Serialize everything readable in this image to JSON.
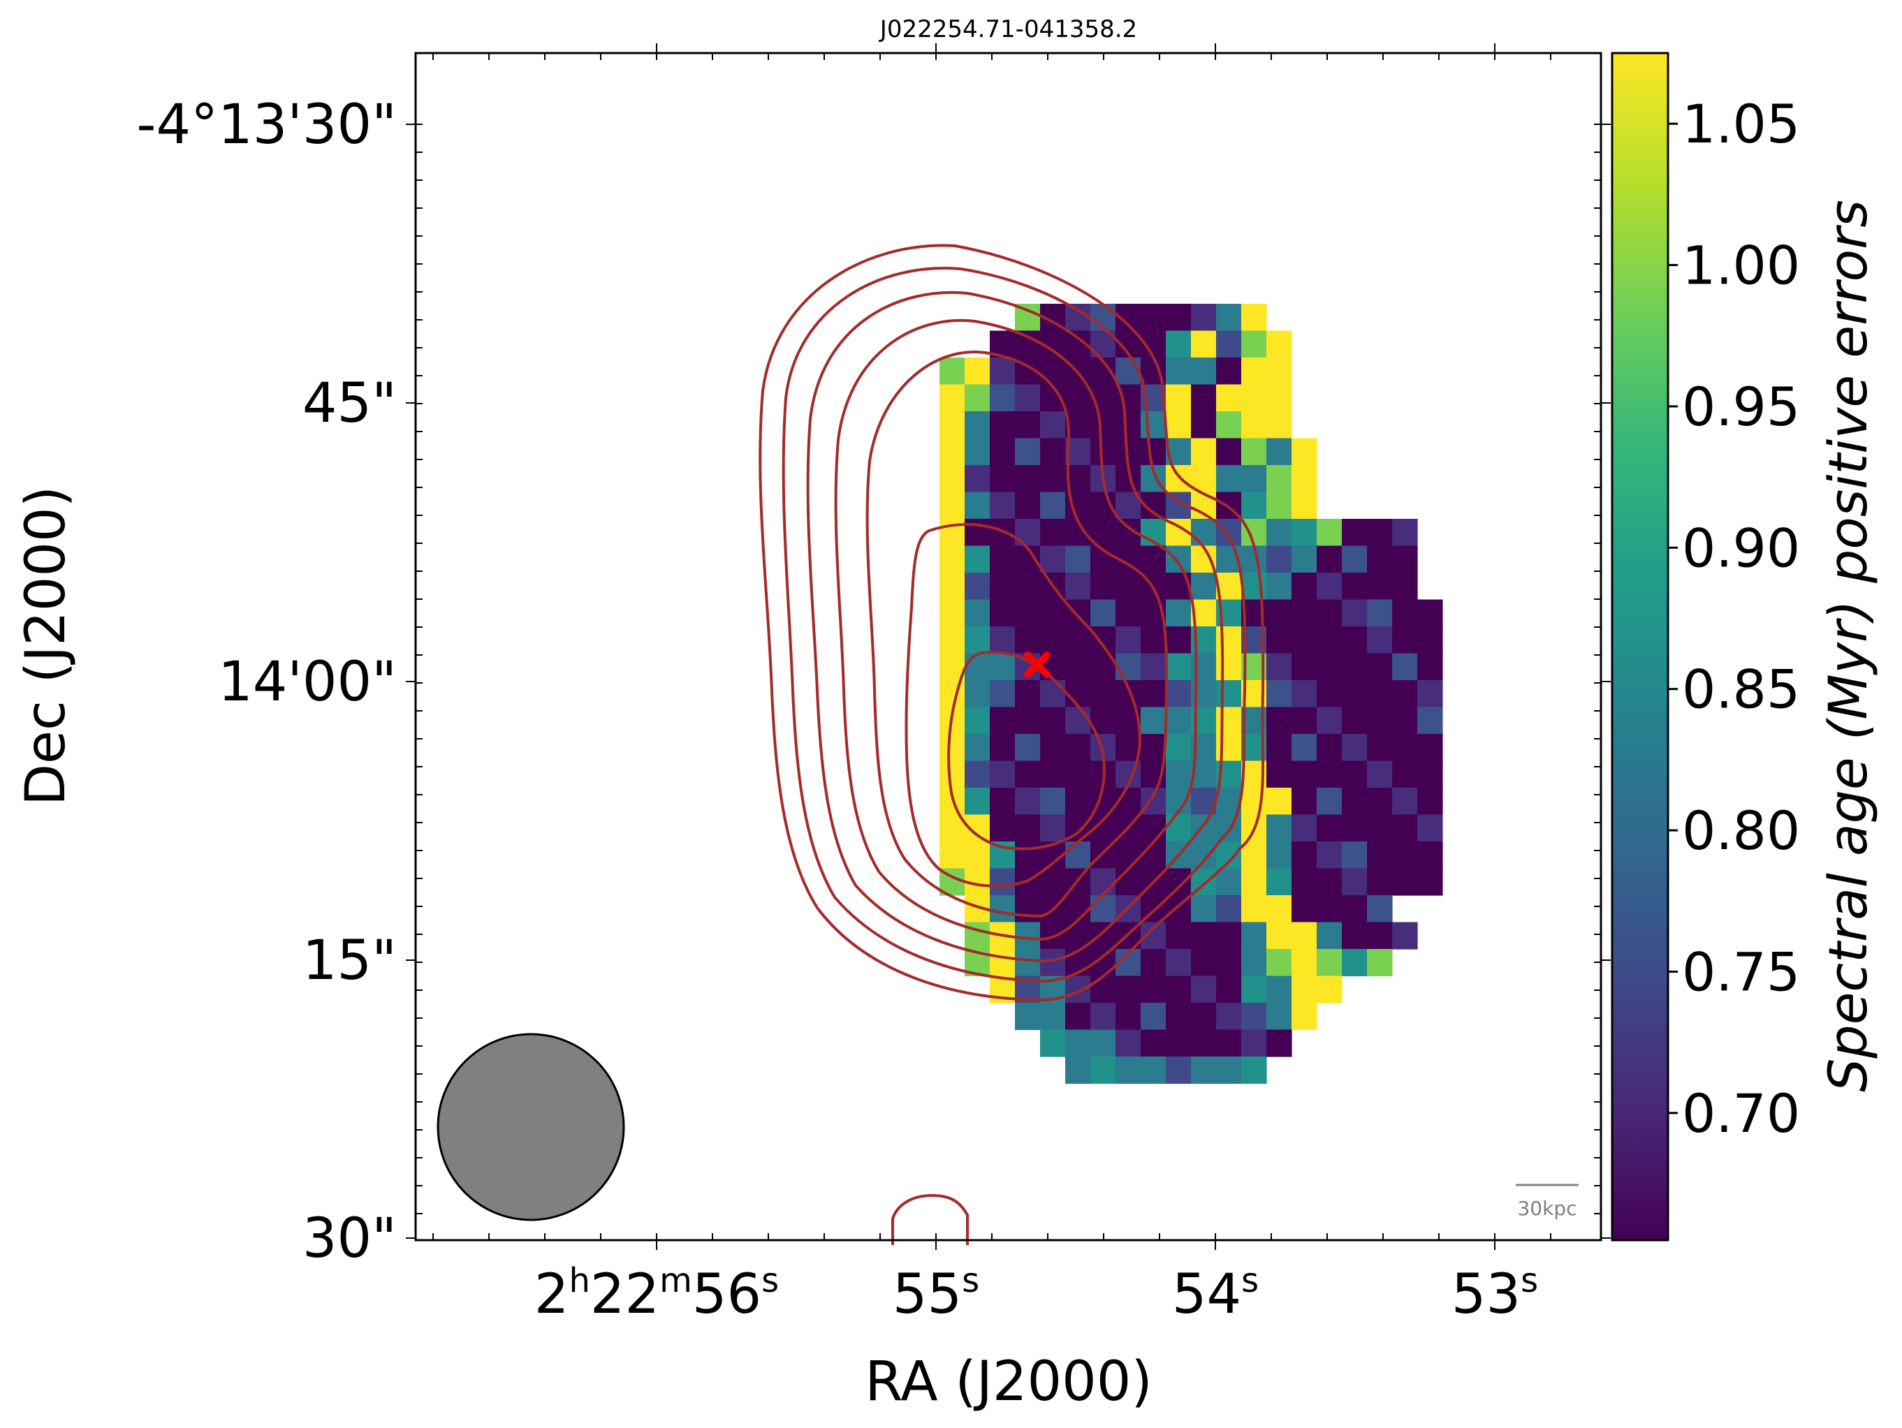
{
  "chart_data": {
    "type": "heatmap",
    "title": "J022254.71-041358.2",
    "xlabel": "RA (J2000)",
    "ylabel": "Dec (J2000)",
    "x_ticks": [
      {
        "h": "2",
        "m": "22",
        "s": "56",
        "value_s": 56
      },
      {
        "s": "55",
        "value_s": 55
      },
      {
        "s": "54",
        "value_s": 54
      },
      {
        "s": "53",
        "value_s": 53
      }
    ],
    "y_ticks": [
      "-4°13'30\"",
      "45\"",
      "14'00\"",
      "15\"",
      "30\""
    ],
    "colorbar": {
      "label": "Spectral age (Myr) positive errors",
      "colormap": "viridis",
      "range": [
        0.655,
        1.075
      ],
      "ticks": [
        "0.70",
        "0.75",
        "0.80",
        "0.85",
        "0.90",
        "0.95",
        "1.00",
        "1.05"
      ]
    },
    "contour_color": "#a52a2a",
    "contour_levels": 6,
    "beam_color": "#808080",
    "scale_bar": "30kpc",
    "source_marker": {
      "symbol": "x",
      "color": "#ff0000",
      "position": "core"
    },
    "map": {
      "rows": 30,
      "cols": 24,
      "description_rows": [
        "........HLLLLLLLMY......",
        ".......LLLLLLLMYMHY.....",
        ".....HYLLLLLLLMMLYY.....",
        ".....YHLLLLLLMYLYYY.....",
        ".....YMLLLLLLMYLHYY.....",
        ".....YMLLLLLLLMYLHMY....",
        ".....YLLLLLLLMYYMMHY....",
        ".....YMLLLLLLLMYLMHY....",
        ".....YLLLLLLLMYMMHMMHLLL.",
        ".....YMLLLLLLLMYMMMMLLLL.",
        ".....YMLLLLLLLLMYMMLLLLL.",
        ".....YMLLLLLLLMYMLLLLLLLL",
        ".....YMLLLLLLLLMYMLLLLLLL",
        ".....YMMLLLLLLMMYHLLLLLLL",
        ".....YMLLLLLLLMMMYLLLLLLL",
        ".....YMLLLLLLMMMYMLLLLLLL",
        ".....YMLLLLLLLMMYMLLLLLLL",
        ".....YMLLLLLLLMMMYLLLLLLL",
        ".....YMLLLLLLLMMMYYLLLLLL",
        ".....YYLLLLLLLMMMYMLLLLLL",
        ".....YYMLLLLLLMMMYMLLLLLL",
        ".....HYMLLLLLLLMMYMLLLLLL",
        "......YMLLLLLLLMMYYLLLL..",
        "......HYMLLLLLLLLMYYMLLL.",
        "......HYMLLLLLLLLMHYHMH..",
        ".......YMMLLLLLLLMMYY....",
        "........MMLLLLLLLMMY.....",
        ".........MMMLLLLLLL.....",
        "..........MMMMMMMM......",
        "........................"
      ],
      "legend": {
        "L": "low (~0.66)",
        "M": "mid (~0.85)",
        "H": "high (~0.97)",
        "Y": "saturated (~1.07)",
        ".": "blank"
      }
    }
  }
}
